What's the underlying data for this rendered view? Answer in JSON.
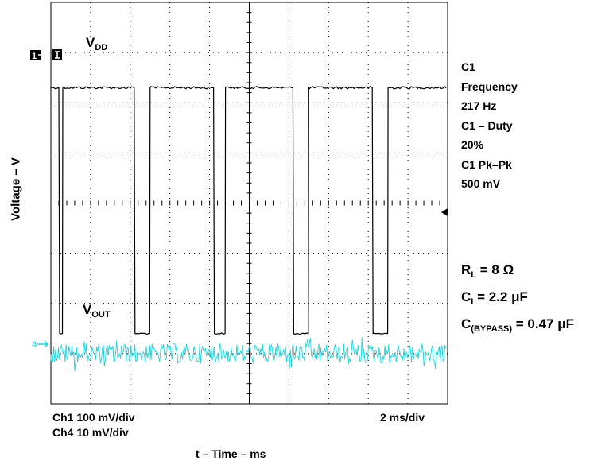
{
  "chart_data": {
    "type": "line",
    "title": "",
    "xlabel": "t – Time – ms",
    "ylabel": "Voltage – V",
    "x_divisions": 10,
    "y_divisions": 8,
    "grid": true,
    "series": [
      {
        "name": "VDD",
        "channel": "1",
        "scale": "100 mV/div",
        "color": "#000000",
        "shape": "square wave",
        "high_level_div": 6.3,
        "low_level_div": 1.4,
        "falling_edges_div": [
          0.2,
          2.1,
          4.1,
          6.1,
          8.1
        ],
        "rising_edges_div": [
          0.3,
          2.5,
          4.4,
          6.5,
          8.5
        ]
      },
      {
        "name": "VOUT",
        "channel": "4",
        "scale": "10 mV/div",
        "color": "#22d3d8",
        "shape": "noise",
        "baseline_div": 1.0,
        "noise_amplitude_div": 0.2
      }
    ],
    "time_scale": "2 ms/div"
  },
  "labels": {
    "vdd": {
      "main": "V",
      "sub": "DD"
    },
    "vout": {
      "main": "V",
      "sub": "OUT"
    },
    "ch1_marker": "1",
    "ch4_marker": "4",
    "ch1_scale": "Ch1 100 mV/div",
    "ch4_scale": "Ch4 10 mV/div",
    "time_scale": "2 ms/div",
    "xlabel": "t – Time – ms",
    "ylabel": "Voltage – V"
  },
  "measurements": [
    "C1",
    "Frequency",
    "217 Hz",
    "C1 – Duty",
    "20%",
    "C1 Pk–Pk",
    "500 mV"
  ],
  "params": {
    "rl": {
      "main": "R",
      "sub": "L",
      "value": " = 8 Ω"
    },
    "ci": {
      "main": "C",
      "sub": "I",
      "value": " = 2.2 μF"
    },
    "cbypass": {
      "main": "C",
      "sub": "(BYPASS)",
      "value": " = 0.47 μF"
    }
  }
}
